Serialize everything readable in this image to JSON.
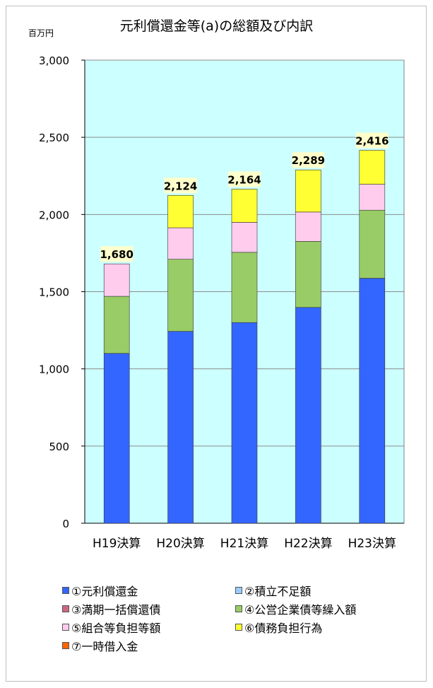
{
  "chart_data": {
    "type": "bar",
    "stacked": true,
    "title": "元利償還金等(a)の総額及び内訳",
    "y_unit_label": "百万円",
    "xlabel": "",
    "ylabel": "",
    "ylim": [
      0,
      3000
    ],
    "y_ticks": [
      0,
      500,
      1000,
      1500,
      2000,
      2500,
      3000
    ],
    "y_tick_labels": [
      "0",
      "500",
      "1,000",
      "1,500",
      "2,000",
      "2,500",
      "3,000"
    ],
    "grid": true,
    "plot_background": "#ccffff",
    "legend_position": "bottom",
    "categories": [
      "H19決算",
      "H20決算",
      "H21決算",
      "H22決算",
      "H23決算"
    ],
    "totals": [
      1680,
      2124,
      2164,
      2289,
      2416
    ],
    "total_labels": [
      "1,680",
      "2,124",
      "2,164",
      "2,289",
      "2,416"
    ],
    "series": [
      {
        "name": "①元利償還金",
        "color": "#3366ff",
        "values": [
          1100,
          1243,
          1300,
          1398,
          1587
        ]
      },
      {
        "name": "②積立不足額",
        "color": "#99ccff",
        "values": [
          0,
          0,
          0,
          0,
          0
        ]
      },
      {
        "name": "③満期一括償還債",
        "color": "#cc6680",
        "values": [
          0,
          0,
          0,
          0,
          0
        ]
      },
      {
        "name": "④公営企業債等繰入額",
        "color": "#99cc66",
        "values": [
          370,
          467,
          455,
          428,
          441
        ]
      },
      {
        "name": "⑤組合等負担等額",
        "color": "#ffccee",
        "values": [
          210,
          204,
          194,
          190,
          168
        ]
      },
      {
        "name": "⑥債務負担行為",
        "color": "#ffff33",
        "values": [
          0,
          210,
          215,
          273,
          220
        ]
      },
      {
        "name": "⑦一時借入金",
        "color": "#ff6600",
        "values": [
          0,
          0,
          0,
          0,
          0
        ]
      }
    ]
  }
}
